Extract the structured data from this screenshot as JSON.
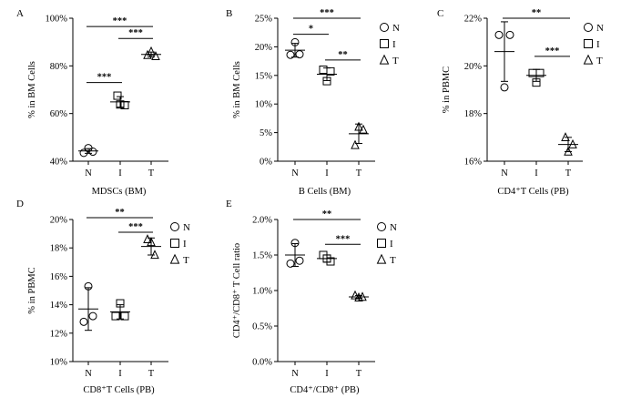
{
  "groups": [
    "N",
    "I",
    "T"
  ],
  "legend": [
    {
      "label": "N",
      "marker": "circle-icon"
    },
    {
      "label": "I",
      "marker": "square-icon"
    },
    {
      "label": "T",
      "marker": "triangle-icon"
    }
  ],
  "chart_data": [
    {
      "type": "scatter",
      "panel": "A",
      "title": "",
      "xlabel": "MDSCs (BM)",
      "ylabel": "% in BM Cells",
      "categories": [
        "N",
        "I",
        "T"
      ],
      "ylim": [
        40,
        100
      ],
      "yticks": [
        40,
        60,
        80,
        100
      ],
      "ytick_labels": [
        "40%",
        "60%",
        "80%",
        "100%"
      ],
      "series": [
        {
          "name": "N",
          "points": [
            45.5,
            43.5,
            44.0
          ],
          "mean": 44.3,
          "sd": 1.0
        },
        {
          "name": "I",
          "points": [
            67.5,
            63.5,
            63.8
          ],
          "mean": 64.9,
          "sd": 2.2
        },
        {
          "name": "T",
          "points": [
            86.0,
            84.0,
            84.5
          ],
          "mean": 84.8,
          "sd": 1.0
        }
      ],
      "significance": [
        {
          "from": "N",
          "to": "T",
          "label": "***",
          "value": 96.5
        },
        {
          "from": "I",
          "to": "T",
          "label": "***",
          "value": 91.5
        },
        {
          "from": "N",
          "to": "I",
          "label": "***",
          "value": 73.0
        }
      ],
      "legend": false
    },
    {
      "type": "scatter",
      "panel": "B",
      "title": "",
      "xlabel": "B Cells (BM)",
      "ylabel": "% in BM Cells",
      "categories": [
        "N",
        "I",
        "T"
      ],
      "ylim": [
        0,
        25
      ],
      "yticks": [
        0,
        5,
        10,
        15,
        20,
        25
      ],
      "ytick_labels": [
        "0%",
        "5%",
        "10%",
        "15%",
        "20%",
        "25%"
      ],
      "series": [
        {
          "name": "N",
          "points": [
            20.8,
            18.6,
            18.7
          ],
          "mean": 19.4,
          "sd": 1.2
        },
        {
          "name": "I",
          "points": [
            16.0,
            15.7,
            14.0
          ],
          "mean": 15.2,
          "sd": 1.1
        },
        {
          "name": "T",
          "points": [
            6.0,
            5.5,
            2.8
          ],
          "mean": 4.8,
          "sd": 1.7
        }
      ],
      "significance": [
        {
          "from": "N",
          "to": "T",
          "label": "***",
          "value": 25.0
        },
        {
          "from": "N",
          "to": "I",
          "label": "*",
          "value": 22.2
        },
        {
          "from": "I",
          "to": "T",
          "label": "**",
          "value": 17.7
        }
      ],
      "legend": true
    },
    {
      "type": "scatter",
      "panel": "C",
      "title": "",
      "xlabel": "CD4⁺T Cells (PB)",
      "ylabel": "% in PBMC",
      "categories": [
        "N",
        "I",
        "T"
      ],
      "ylim": [
        16,
        22
      ],
      "yticks": [
        16,
        18,
        20,
        22
      ],
      "ytick_labels": [
        "16%",
        "18%",
        "20%",
        "22%"
      ],
      "series": [
        {
          "name": "N",
          "points": [
            21.3,
            21.3,
            19.1
          ],
          "mean": 20.6,
          "sd": 1.25
        },
        {
          "name": "I",
          "points": [
            19.7,
            19.7,
            19.3
          ],
          "mean": 19.6,
          "sd": 0.25
        },
        {
          "name": "T",
          "points": [
            17.0,
            16.7,
            16.4
          ],
          "mean": 16.7,
          "sd": 0.3
        }
      ],
      "significance": [
        {
          "from": "N",
          "to": "T",
          "label": "**",
          "value": 22.0
        },
        {
          "from": "I",
          "to": "T",
          "label": "***",
          "value": 20.4
        }
      ],
      "legend": true
    },
    {
      "type": "scatter",
      "panel": "D",
      "title": "",
      "xlabel": "CD8⁺T Cells (PB)",
      "ylabel": "% in PBMC",
      "categories": [
        "N",
        "I",
        "T"
      ],
      "ylim": [
        10,
        20
      ],
      "yticks": [
        10,
        12,
        14,
        16,
        18,
        20
      ],
      "ytick_labels": [
        "10%",
        "12%",
        "14%",
        "16%",
        "18%",
        "20%"
      ],
      "series": [
        {
          "name": "N",
          "points": [
            15.3,
            12.8,
            13.2
          ],
          "mean": 13.7,
          "sd": 1.5
        },
        {
          "name": "I",
          "points": [
            14.1,
            13.2,
            13.2
          ],
          "mean": 13.5,
          "sd": 0.5
        },
        {
          "name": "T",
          "points": [
            18.6,
            18.4,
            17.5
          ],
          "mean": 18.1,
          "sd": 0.6
        }
      ],
      "significance": [
        {
          "from": "N",
          "to": "T",
          "label": "**",
          "value": 20.3
        },
        {
          "from": "I",
          "to": "T",
          "label": "***",
          "value": 19.1
        }
      ],
      "legend": true
    },
    {
      "type": "scatter",
      "panel": "E",
      "title": "",
      "xlabel": "CD4⁺/CD8⁺ (PB)",
      "ylabel": "CD4⁺/CD8⁺ T Cell ratio",
      "categories": [
        "N",
        "I",
        "T"
      ],
      "ylim": [
        0,
        2
      ],
      "yticks": [
        0,
        0.5,
        1.0,
        1.5,
        2.0
      ],
      "ytick_labels": [
        "0.0%",
        "0.5%",
        "1.0%",
        "1.5%",
        "2.0%"
      ],
      "series": [
        {
          "name": "N",
          "points": [
            1.67,
            1.38,
            1.42
          ],
          "mean": 1.5,
          "sd": 0.16
        },
        {
          "name": "I",
          "points": [
            1.5,
            1.41,
            1.45
          ],
          "mean": 1.45,
          "sd": 0.05
        },
        {
          "name": "T",
          "points": [
            0.93,
            0.91,
            0.9
          ],
          "mean": 0.91,
          "sd": 0.02
        }
      ],
      "significance": [
        {
          "from": "N",
          "to": "T",
          "label": "**",
          "value": 2.0
        },
        {
          "from": "I",
          "to": "T",
          "label": "***",
          "value": 1.65
        }
      ],
      "legend": true
    }
  ]
}
